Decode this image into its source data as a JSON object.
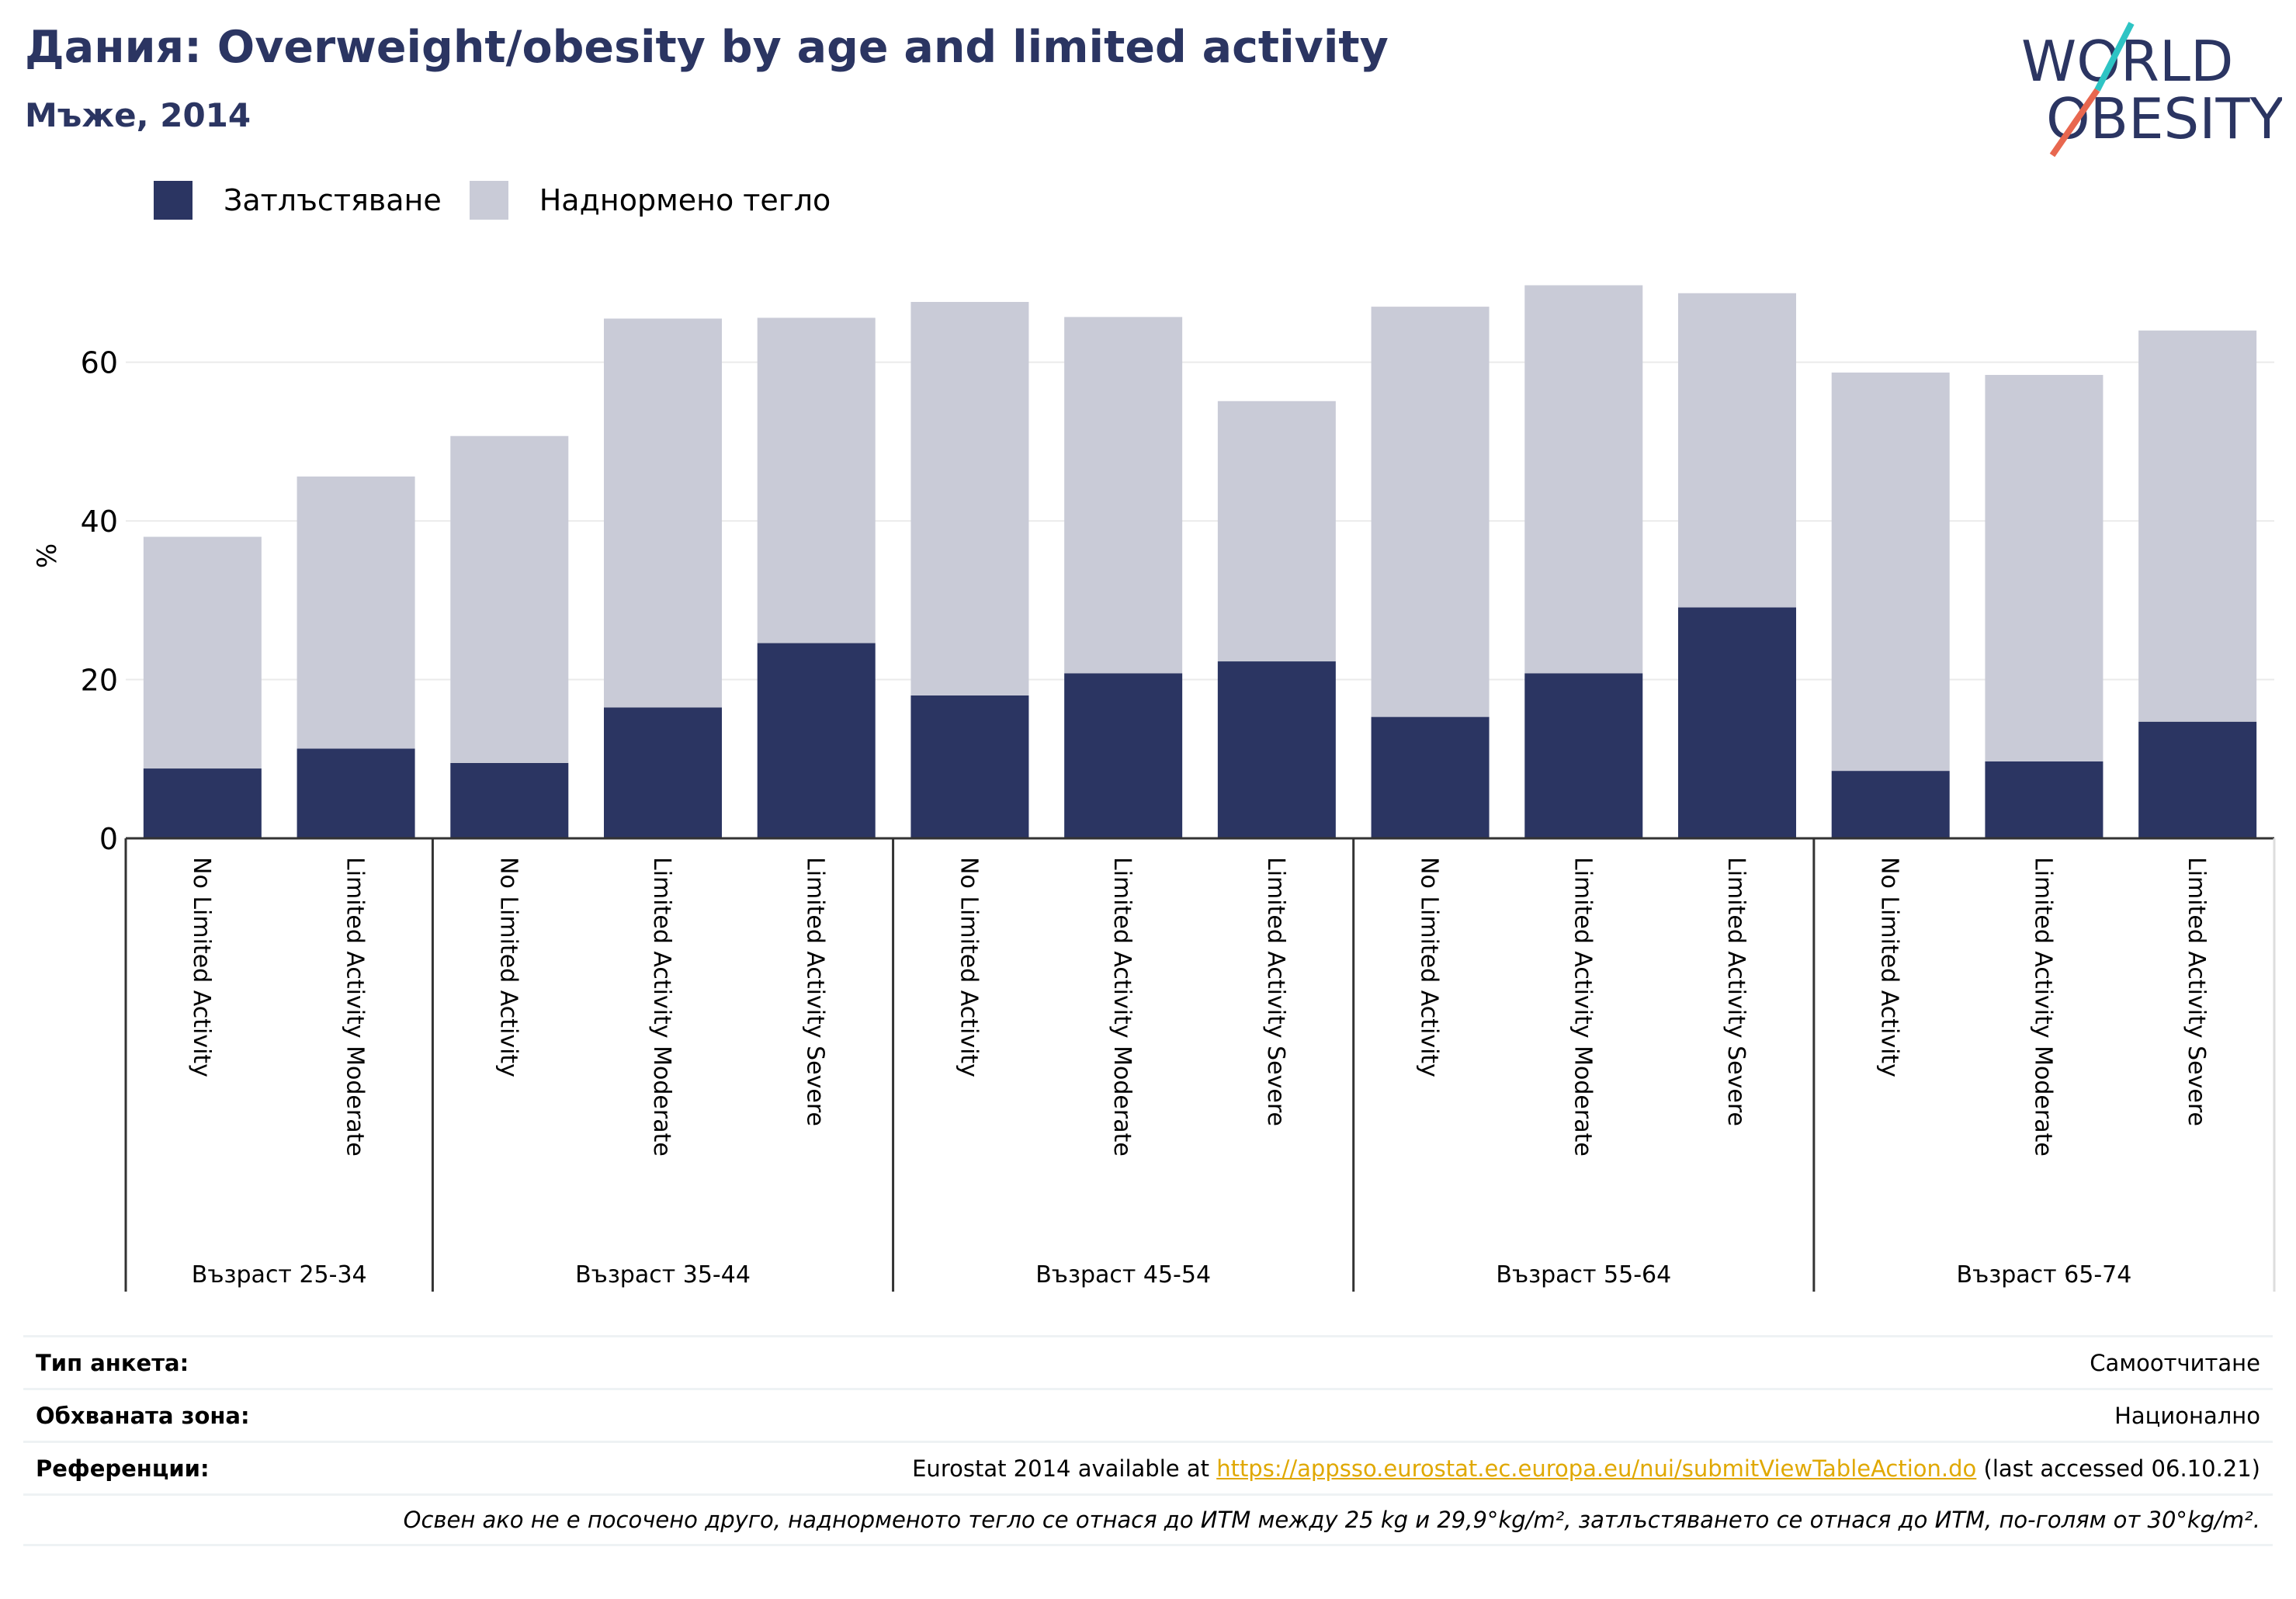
{
  "header": {
    "title": "Дания: Overweight/obesity by age and limited activity",
    "subtitle": "Мъже, 2014"
  },
  "logo": {
    "line1": "WORLD",
    "line2": "OBESITY"
  },
  "legend": [
    {
      "label": "Затлъстяване",
      "color": "#2b3562"
    },
    {
      "label": "Наднормено тегло",
      "color": "#c9cbd7"
    }
  ],
  "chart_data": {
    "type": "bar",
    "stacked": true,
    "ylabel": "%",
    "ylim": [
      0,
      72
    ],
    "yticks": [
      0,
      20,
      40,
      60
    ],
    "grid": true,
    "legend_position": "top-left",
    "groups": [
      {
        "label": "Възраст 25-34",
        "categories": [
          "No Limited Activity",
          "Limited Activity Moderate"
        ]
      },
      {
        "label": "Възраст 35-44",
        "categories": [
          "No Limited Activity",
          "Limited Activity Moderate",
          "Limited Activity Severe"
        ]
      },
      {
        "label": "Възраст 45-54",
        "categories": [
          "No Limited Activity",
          "Limited Activity Moderate",
          "Limited Activity Severe"
        ]
      },
      {
        "label": "Възраст 55-64",
        "categories": [
          "No Limited Activity",
          "Limited Activity Moderate",
          "Limited Activity Severe"
        ]
      },
      {
        "label": "Възраст 65-74",
        "categories": [
          "No Limited Activity",
          "Limited Activity Moderate",
          "Limited Activity Severe"
        ]
      }
    ],
    "series": [
      {
        "name": "Затлъстяване",
        "color": "#2b3562",
        "values": [
          8.8,
          11.3,
          9.5,
          16.5,
          24.6,
          18.0,
          20.8,
          22.3,
          15.3,
          20.8,
          29.1,
          8.5,
          9.7,
          14.7
        ]
      },
      {
        "name": "Наднормено тегло",
        "color": "#c9cbd7",
        "values": [
          29.2,
          34.3,
          41.2,
          49.0,
          41.0,
          49.6,
          44.9,
          32.8,
          51.7,
          48.9,
          39.6,
          50.2,
          48.7,
          49.3
        ]
      }
    ]
  },
  "meta": {
    "survey_type_label": "Тип анкета:",
    "survey_type_value": "Самоотчитане",
    "coverage_label": "Обхваната зона:",
    "coverage_value": "Национално",
    "references_label": "Референции:",
    "references_prefix": "Eurostat 2014 available at ",
    "references_link": "https://appsso.eurostat.ec.europa.eu/nui/submitViewTableAction.do",
    "references_suffix": " (last accessed 06.10.21)",
    "note": "Освен ако не е посочено друго, наднорменото тегло се отнася до ИТМ между 25 kg и 29,9°kg/m², затлъстяването се отнася до ИТМ, по-голям от 30°kg/m²."
  }
}
